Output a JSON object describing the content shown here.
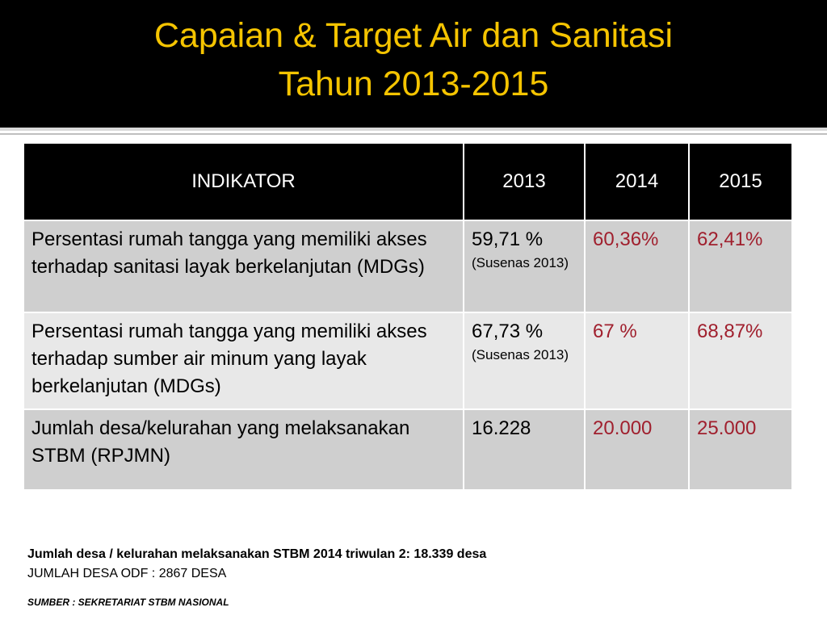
{
  "title": {
    "line1": "Capaian & Target Air dan Sanitasi",
    "line2": "Tahun 2013-2015"
  },
  "table": {
    "headers": [
      "INDIKATOR",
      "2013",
      "2014",
      "2015"
    ],
    "rows": [
      {
        "indicator": "Persentasi rumah tangga yang memiliki akses terhadap sanitasi layak berkelanjutan (MDGs)",
        "v2013": "59,71 %",
        "v2013_source": "(Susenas 2013)",
        "v2014": "60,36%",
        "v2015": "62,41%"
      },
      {
        "indicator": "Persentasi rumah tangga yang memiliki akses terhadap sumber air minum yang layak  berkelanjutan (MDGs)",
        "v2013": "67,73 %",
        "v2013_source": "(Susenas 2013)",
        "v2014": "67 %",
        "v2015": "68,87%"
      },
      {
        "indicator": "Jumlah desa/kelurahan yang melaksanakan STBM (RPJMN)",
        "v2013": "16.228",
        "v2014": "20.000",
        "v2015": "25.000"
      }
    ]
  },
  "notes": {
    "line1": "Jumlah desa / kelurahan melaksanakan STBM 2014 triwulan 2: 18.339 desa",
    "line2": "JUMLAH DESA ODF : 2867 DESA",
    "source": "SUMBER : SEKRETARIAT STBM NASIONAL"
  },
  "colors": {
    "title": "#f5c400",
    "target_values": "#a0202e",
    "header_bg": "#000000"
  }
}
